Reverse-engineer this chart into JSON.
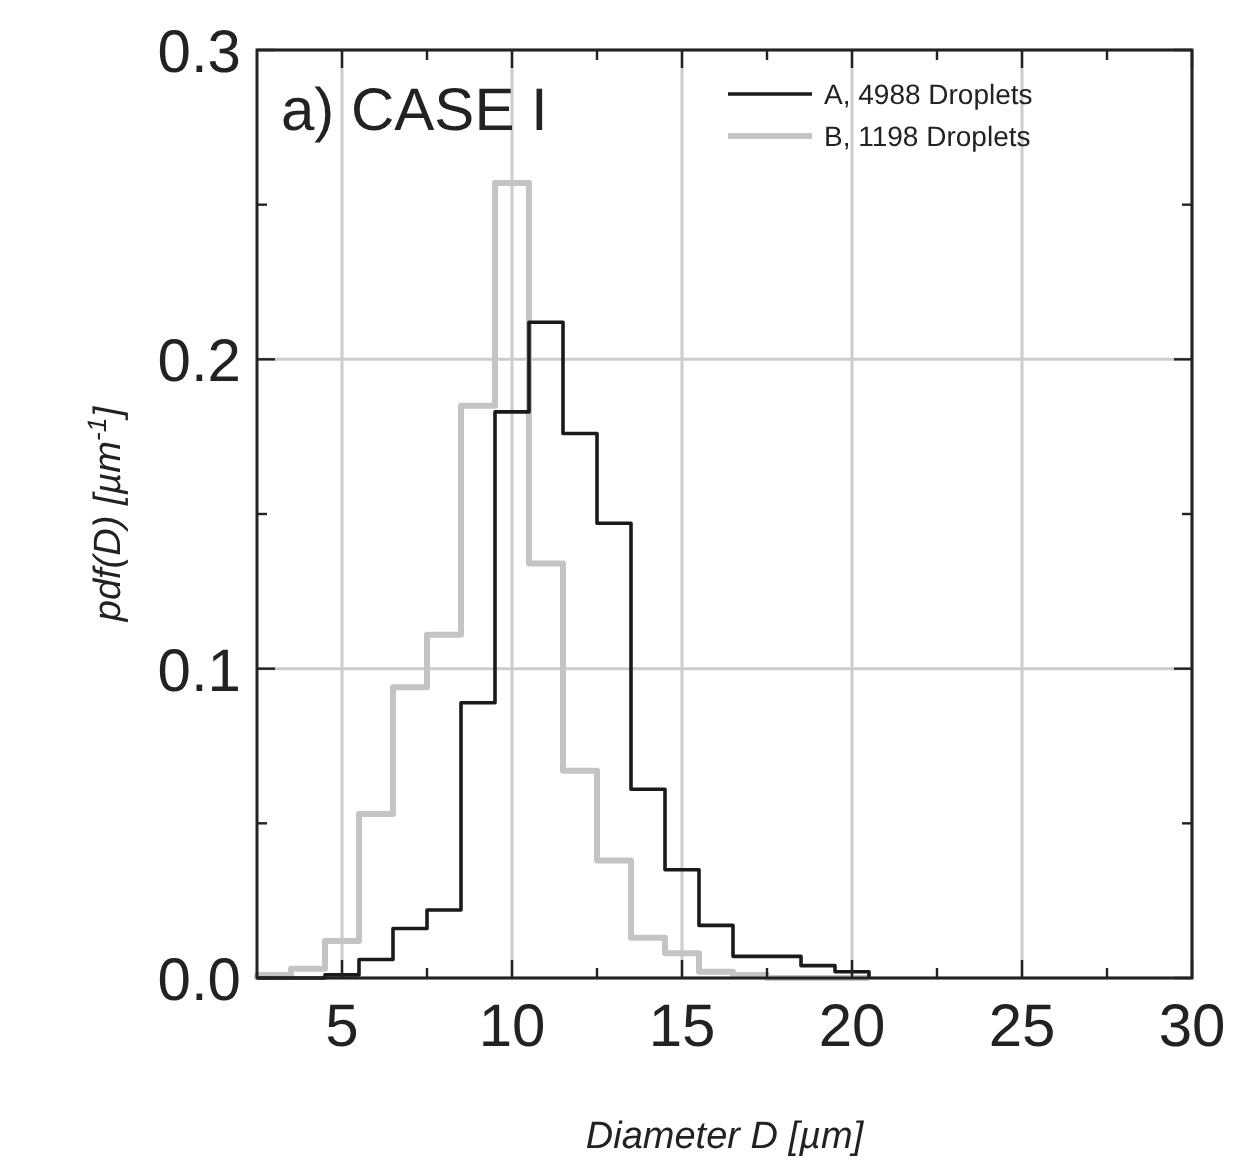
{
  "chart_data": {
    "type": "histogram",
    "title": "a) CASE I",
    "xlabel": "Diameter D [µm]",
    "ylabel": "pdf(D) [µm$^{-1}$]",
    "bins": [
      2.5,
      3.5,
      4.5,
      5.5,
      6.5,
      7.5,
      8.5,
      9.5,
      10.5,
      11.5,
      12.5,
      13.5,
      14.5,
      15.5,
      16.5,
      17.5,
      18.5,
      19.5,
      20.5
    ],
    "series": [
      {
        "name": "A, 4988 Droplets",
        "color": "#1a1a1a",
        "values": [
          0,
          0,
          0.001,
          0.006,
          0.016,
          0.022,
          0.089,
          0.183,
          0.212,
          0.176,
          0.147,
          0.061,
          0.035,
          0.017,
          0.007,
          0.007,
          0.004,
          0.002
        ]
      },
      {
        "name": "B, 1198 Droplets",
        "color": "#c4c4c4",
        "values": [
          0.001,
          0.003,
          0.012,
          0.053,
          0.094,
          0.111,
          0.185,
          0.257,
          0.134,
          0.067,
          0.038,
          0.013,
          0.008,
          0.002,
          0.001,
          0,
          0,
          0
        ]
      }
    ],
    "xlim": [
      2.5,
      30
    ],
    "xticks": [
      5,
      {
        "value": 7.5,
        "label": null
      },
      10,
      {
        "value": 12.5,
        "label": null
      },
      15,
      {
        "value": 17.5,
        "label": null
      },
      20,
      {
        "value": 22.5,
        "label": null
      },
      25,
      {
        "value": 27.5,
        "label": null
      },
      30
    ],
    "ylim": [
      0,
      0.3
    ],
    "yticks": [
      {
        "value": 0,
        "label": "0.0"
      },
      {
        "value": 0.05,
        "label": null
      },
      {
        "value": 0.1,
        "label": "0.1"
      },
      {
        "value": 0.15,
        "label": null
      },
      {
        "value": 0.2,
        "label": "0.2"
      },
      {
        "value": 0.25,
        "label": null
      },
      {
        "value": 0.3,
        "label": "0.3"
      }
    ],
    "grid": true,
    "legend": "top right"
  }
}
